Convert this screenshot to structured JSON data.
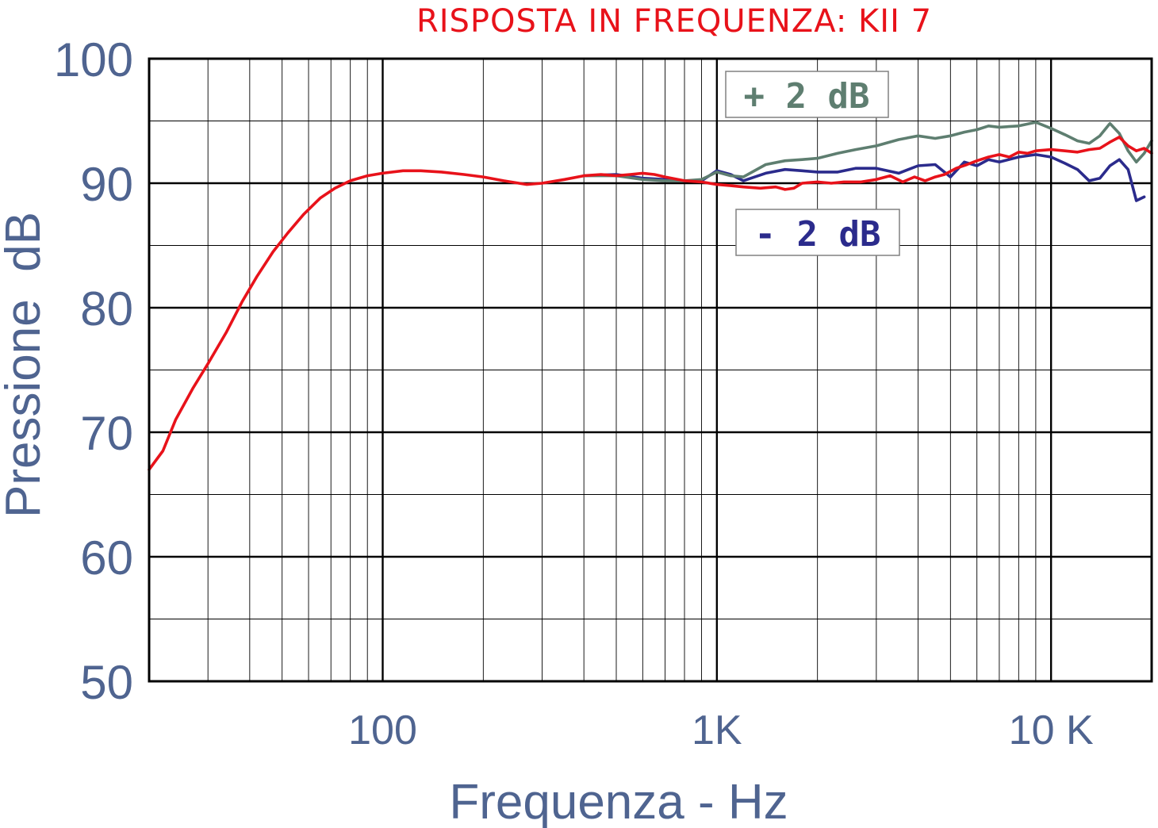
{
  "chart_data": {
    "type": "line",
    "title": "RISPOSTA IN FREQUENZA: KII 7",
    "xlabel": "Frequenza - Hz",
    "ylabel": "Pressione  dB",
    "x_scale": "log",
    "xlim": [
      20,
      20000
    ],
    "ylim": [
      50,
      100
    ],
    "x_ticks": [
      {
        "value": 100,
        "label": "100"
      },
      {
        "value": 1000,
        "label": "1K"
      },
      {
        "value": 10000,
        "label": "10 K"
      }
    ],
    "y_ticks": [
      {
        "value": 100,
        "label": "100"
      },
      {
        "value": 90,
        "label": "90"
      },
      {
        "value": 80,
        "label": "80"
      },
      {
        "value": 70,
        "label": "70"
      },
      {
        "value": 60,
        "label": "60"
      },
      {
        "value": 50,
        "label": "50"
      }
    ],
    "grid": true,
    "series": [
      {
        "name": "",
        "color": "#e8121a",
        "points": [
          [
            20,
            67
          ],
          [
            22,
            68.5
          ],
          [
            24,
            71
          ],
          [
            27,
            73.5
          ],
          [
            30,
            75.5
          ],
          [
            34,
            78
          ],
          [
            38,
            80.5
          ],
          [
            42,
            82.5
          ],
          [
            47,
            84.5
          ],
          [
            52,
            86
          ],
          [
            58,
            87.5
          ],
          [
            65,
            88.8
          ],
          [
            72,
            89.6
          ],
          [
            80,
            90.2
          ],
          [
            90,
            90.6
          ],
          [
            100,
            90.8
          ],
          [
            115,
            91
          ],
          [
            130,
            91
          ],
          [
            150,
            90.9
          ],
          [
            175,
            90.7
          ],
          [
            200,
            90.5
          ],
          [
            230,
            90.2
          ],
          [
            270,
            89.9
          ],
          [
            300,
            90
          ],
          [
            350,
            90.3
          ],
          [
            400,
            90.6
          ],
          [
            450,
            90.7
          ],
          [
            500,
            90.6
          ],
          [
            550,
            90.7
          ],
          [
            600,
            90.8
          ],
          [
            650,
            90.7
          ],
          [
            700,
            90.5
          ],
          [
            800,
            90.2
          ],
          [
            900,
            90.1
          ],
          [
            1000,
            89.9
          ],
          [
            1100,
            89.8
          ],
          [
            1200,
            89.7
          ],
          [
            1350,
            89.6
          ],
          [
            1500,
            89.7
          ],
          [
            1600,
            89.5
          ],
          [
            1700,
            89.6
          ],
          [
            1800,
            90
          ],
          [
            2000,
            90.1
          ],
          [
            2200,
            90
          ],
          [
            2400,
            90.1
          ],
          [
            2700,
            90.1
          ],
          [
            3000,
            90.3
          ],
          [
            3300,
            90.6
          ],
          [
            3600,
            90.1
          ],
          [
            3900,
            90.5
          ],
          [
            4200,
            90.2
          ],
          [
            4500,
            90.5
          ],
          [
            4800,
            90.7
          ],
          [
            5200,
            91.2
          ],
          [
            5600,
            91.5
          ],
          [
            6000,
            91.8
          ],
          [
            6500,
            92.1
          ],
          [
            7000,
            92.3
          ],
          [
            7500,
            92.1
          ],
          [
            8000,
            92.5
          ],
          [
            8500,
            92.4
          ],
          [
            9000,
            92.6
          ],
          [
            10000,
            92.7
          ],
          [
            11000,
            92.6
          ],
          [
            12000,
            92.5
          ],
          [
            13000,
            92.7
          ],
          [
            14000,
            92.8
          ],
          [
            15000,
            93.3
          ],
          [
            16000,
            93.7
          ],
          [
            17000,
            93
          ],
          [
            18000,
            92.6
          ],
          [
            19000,
            92.8
          ],
          [
            20000,
            92.4
          ]
        ]
      },
      {
        "name": "",
        "color": "#2b2b8c",
        "points": [
          [
            400,
            90.6
          ],
          [
            500,
            90.7
          ],
          [
            600,
            90.4
          ],
          [
            700,
            90.3
          ],
          [
            800,
            90.2
          ],
          [
            900,
            90.2
          ],
          [
            1000,
            91
          ],
          [
            1100,
            90.7
          ],
          [
            1200,
            90.2
          ],
          [
            1400,
            90.8
          ],
          [
            1600,
            91.1
          ],
          [
            1800,
            91
          ],
          [
            2000,
            90.9
          ],
          [
            2300,
            90.9
          ],
          [
            2600,
            91.2
          ],
          [
            3000,
            91.2
          ],
          [
            3500,
            90.8
          ],
          [
            4000,
            91.4
          ],
          [
            4500,
            91.5
          ],
          [
            5000,
            90.5
          ],
          [
            5500,
            91.7
          ],
          [
            6000,
            91.4
          ],
          [
            6500,
            91.9
          ],
          [
            7000,
            91.7
          ],
          [
            8000,
            92.1
          ],
          [
            9000,
            92.3
          ],
          [
            10000,
            92.1
          ],
          [
            11000,
            91.6
          ],
          [
            12000,
            91.1
          ],
          [
            13000,
            90.2
          ],
          [
            14000,
            90.4
          ],
          [
            15000,
            91.4
          ],
          [
            16000,
            91.9
          ],
          [
            17000,
            91.1
          ],
          [
            18000,
            88.6
          ],
          [
            19000,
            88.9
          ]
        ]
      },
      {
        "name": "",
        "color": "#5e7e70",
        "points": [
          [
            400,
            90.6
          ],
          [
            500,
            90.6
          ],
          [
            600,
            90.3
          ],
          [
            700,
            90.2
          ],
          [
            800,
            90.2
          ],
          [
            900,
            90.3
          ],
          [
            1000,
            90.9
          ],
          [
            1100,
            90.6
          ],
          [
            1200,
            90.5
          ],
          [
            1400,
            91.5
          ],
          [
            1600,
            91.8
          ],
          [
            1800,
            91.9
          ],
          [
            2000,
            92
          ],
          [
            2300,
            92.4
          ],
          [
            2600,
            92.7
          ],
          [
            3000,
            93
          ],
          [
            3500,
            93.5
          ],
          [
            4000,
            93.8
          ],
          [
            4500,
            93.6
          ],
          [
            5000,
            93.8
          ],
          [
            5500,
            94.1
          ],
          [
            6000,
            94.3
          ],
          [
            6500,
            94.6
          ],
          [
            7000,
            94.5
          ],
          [
            8000,
            94.6
          ],
          [
            9000,
            94.9
          ],
          [
            10000,
            94.4
          ],
          [
            11000,
            93.9
          ],
          [
            12000,
            93.4
          ],
          [
            13000,
            93.2
          ],
          [
            14000,
            93.8
          ],
          [
            15000,
            94.8
          ],
          [
            16000,
            94
          ],
          [
            17000,
            92.6
          ],
          [
            18000,
            91.7
          ],
          [
            19000,
            92.4
          ],
          [
            20000,
            93.4
          ]
        ]
      }
    ],
    "annotations": [
      {
        "text": "+ 2 dB",
        "color": "#5e7e70",
        "near": "upper curve, around 1.5K–5K Hz above 95 dB"
      },
      {
        "text": "- 2 dB",
        "color": "#2b2b8c",
        "near": "lower curve, around 1.5K–5K Hz below 90 dB"
      }
    ]
  }
}
